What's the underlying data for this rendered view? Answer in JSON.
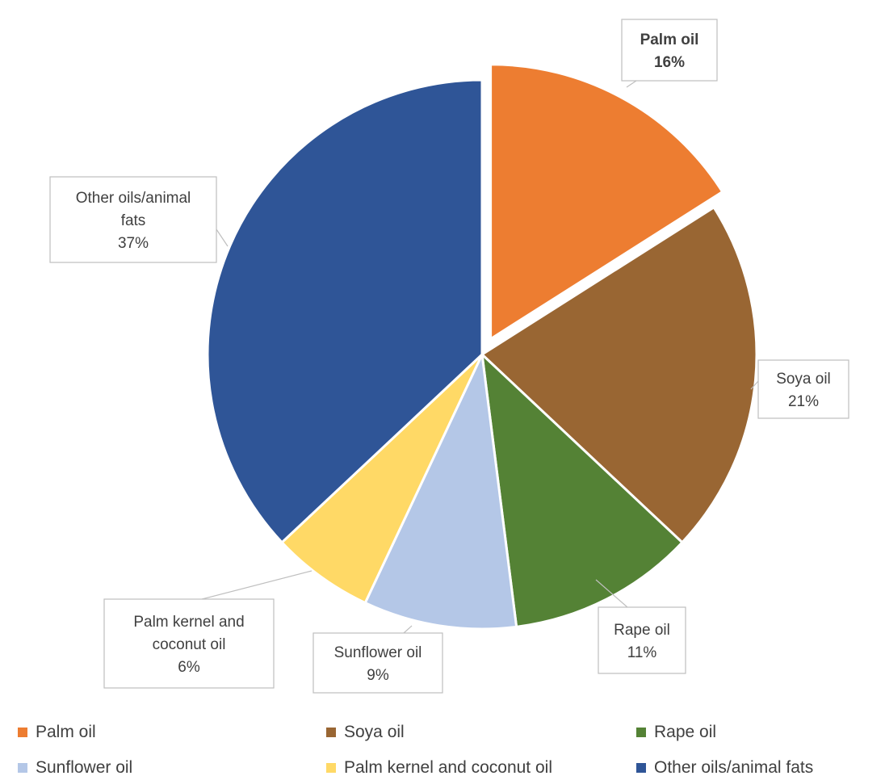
{
  "chart_data": {
    "type": "pie",
    "title": "",
    "slices": [
      {
        "label": "Palm oil",
        "value": 16,
        "value_label": "16%",
        "color": "#ED7D31",
        "exploded": true,
        "bold_label": true
      },
      {
        "label": "Soya oil",
        "value": 21,
        "value_label": "21%",
        "color": "#996633",
        "exploded": false,
        "bold_label": false
      },
      {
        "label": "Rape oil",
        "value": 11,
        "value_label": "11%",
        "color": "#548235",
        "exploded": false,
        "bold_label": false
      },
      {
        "label": "Sunflower oil",
        "value": 9,
        "value_label": "9%",
        "color": "#B4C7E7",
        "exploded": false,
        "bold_label": false
      },
      {
        "label": "Palm kernel and coconut oil",
        "value": 6,
        "value_label": "6%",
        "color": "#FFD966",
        "exploded": false,
        "bold_label": false
      },
      {
        "label": "Other oils/animal fats",
        "value": 37,
        "value_label": "37%",
        "color": "#2F5597",
        "exploded": false,
        "bold_label": false
      }
    ],
    "legend_position": "bottom",
    "start_angle_deg": 0,
    "direction": "clockwise"
  }
}
